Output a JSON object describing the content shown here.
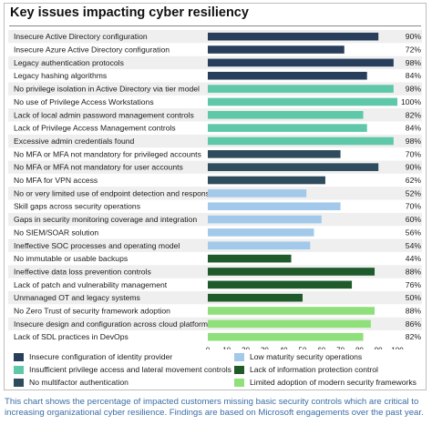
{
  "title": "Key issues impacting cyber resiliency",
  "caption": "This chart shows the percentage of impacted customers missing basic security controls which are critical to increasing organizational cyber resilience. Findings are based on Microsoft engagements over the past year.",
  "colors": {
    "identity": "#283e5a",
    "privilege": "#5ec8a9",
    "mfa": "#2f4b5e",
    "lowmaturity": "#a3c9ea",
    "infoprotection": "#1f5a2a",
    "frameworks": "#8fe07a"
  },
  "chart_data": {
    "type": "bar",
    "orientation": "horizontal",
    "xlim": [
      0,
      100
    ],
    "xticks": [
      "0",
      "10",
      "20",
      "30",
      "40",
      "50",
      "60",
      "70",
      "80",
      "90",
      "100"
    ],
    "categories": [
      "Insecure Active Directory configuration",
      "Insecure Azure Active Directory configuration",
      "Legacy authentication protocols",
      "Legacy hashing algorithms",
      "No privilege isolation in Active Directory via tier model",
      "No use of Privilege Access Workstations",
      "Lack of local admin password management controls",
      "Lack of Privilege Access Management controls",
      "Excessive admin credentials found",
      "No MFA or MFA not mandatory for privileged accounts",
      "No MFA or MFA not mandatory for user accounts",
      "No MFA for VPN access",
      "No or very limited use of endpoint detection and response",
      "Skill gaps across security operations",
      "Gaps in security monitoring coverage and integration",
      "No SIEM/SOAR solution",
      "Ineffective SOC processes and operating model",
      "No immutable or usable backups",
      "Ineffective data loss prevention controls",
      "Lack of patch and vulnerability management",
      "Unmanaged OT and legacy systems",
      "No Zero Trust of security framework adoption",
      "Insecure design and configuration across cloud platforms",
      "Lack of SDL practices in DevOps"
    ],
    "values": [
      90,
      72,
      98,
      84,
      98,
      100,
      82,
      84,
      98,
      70,
      90,
      62,
      52,
      70,
      60,
      56,
      54,
      44,
      88,
      76,
      50,
      88,
      86,
      82
    ],
    "value_labels": [
      "90%",
      "72%",
      "98%",
      "84%",
      "98%",
      "100%",
      "82%",
      "84%",
      "98%",
      "70%",
      "90%",
      "62%",
      "52%",
      "70%",
      "60%",
      "56%",
      "54%",
      "44%",
      "88%",
      "76%",
      "50%",
      "88%",
      "86%",
      "82%"
    ],
    "groups": [
      "identity",
      "identity",
      "identity",
      "identity",
      "privilege",
      "privilege",
      "privilege",
      "privilege",
      "privilege",
      "mfa",
      "mfa",
      "mfa",
      "lowmaturity",
      "lowmaturity",
      "lowmaturity",
      "lowmaturity",
      "lowmaturity",
      "infoprotection",
      "infoprotection",
      "infoprotection",
      "infoprotection",
      "frameworks",
      "frameworks",
      "frameworks"
    ],
    "legend": [
      {
        "group": "identity",
        "label": "Insecure configuration of identity provider"
      },
      {
        "group": "lowmaturity",
        "label": "Low maturity security operations"
      },
      {
        "group": "privilege",
        "label": "Insufficient privilege access and lateral movement controls"
      },
      {
        "group": "infoprotection",
        "label": "Lack of information protection control"
      },
      {
        "group": "mfa",
        "label": "No multifactor authentication"
      },
      {
        "group": "frameworks",
        "label": "Limited adoption of modern security frameworks"
      }
    ],
    "legend_placement": "bottom",
    "grid": false
  }
}
